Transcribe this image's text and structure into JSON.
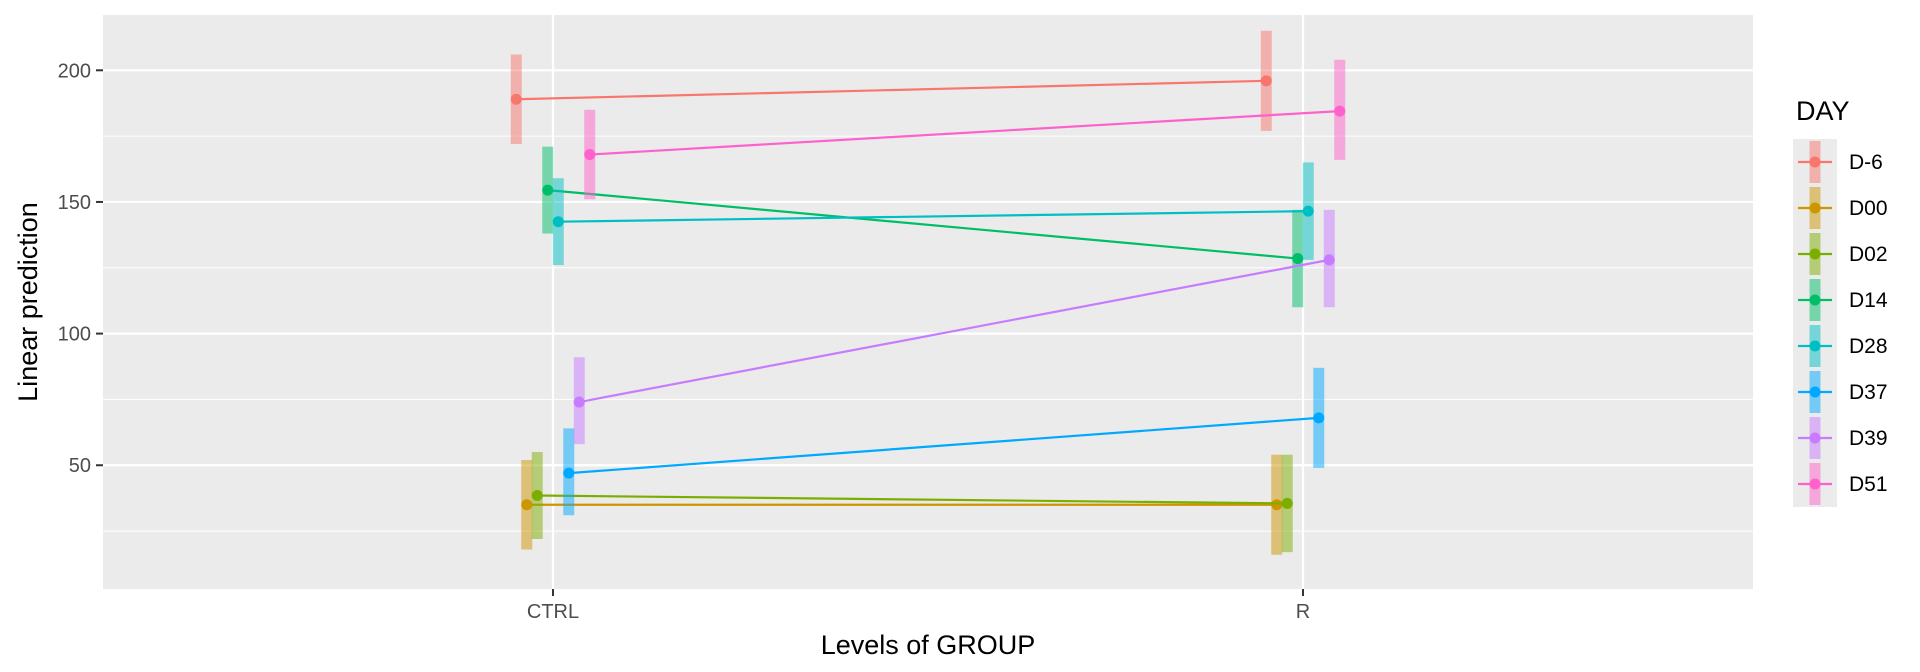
{
  "chart_data": {
    "type": "line",
    "xlabel": "Levels of GROUP",
    "ylabel": "Linear prediction",
    "categories": [
      "CTRL",
      "R"
    ],
    "yticks": [
      50,
      100,
      150,
      200
    ],
    "ylim": [
      3,
      221
    ],
    "grid": true,
    "legend": {
      "title": "DAY",
      "position": "right"
    },
    "series": [
      {
        "name": "D-6",
        "color": "#F8766D",
        "values": [
          189,
          196
        ],
        "lower": [
          172,
          177
        ],
        "upper": [
          206,
          215
        ]
      },
      {
        "name": "D00",
        "color": "#CD9600",
        "values": [
          35,
          35
        ],
        "lower": [
          18,
          16
        ],
        "upper": [
          52,
          54
        ]
      },
      {
        "name": "D02",
        "color": "#7CAE00",
        "values": [
          38.5,
          35.5
        ],
        "lower": [
          22,
          17
        ],
        "upper": [
          55,
          54
        ]
      },
      {
        "name": "D14",
        "color": "#00BE67",
        "values": [
          154.5,
          128.5
        ],
        "lower": [
          138,
          110
        ],
        "upper": [
          171,
          147
        ]
      },
      {
        "name": "D28",
        "color": "#00BFC4",
        "values": [
          142.5,
          146.5
        ],
        "lower": [
          126,
          128
        ],
        "upper": [
          159,
          165
        ]
      },
      {
        "name": "D37",
        "color": "#00A9FF",
        "values": [
          47,
          68
        ],
        "lower": [
          31,
          49
        ],
        "upper": [
          64,
          87
        ]
      },
      {
        "name": "D39",
        "color": "#C77CFF",
        "values": [
          74,
          128
        ],
        "lower": [
          58,
          110
        ],
        "upper": [
          91,
          147
        ]
      },
      {
        "name": "D51",
        "color": "#FF61CC",
        "values": [
          168,
          184.5
        ],
        "lower": [
          151,
          166
        ],
        "upper": [
          185,
          204
        ]
      }
    ]
  }
}
